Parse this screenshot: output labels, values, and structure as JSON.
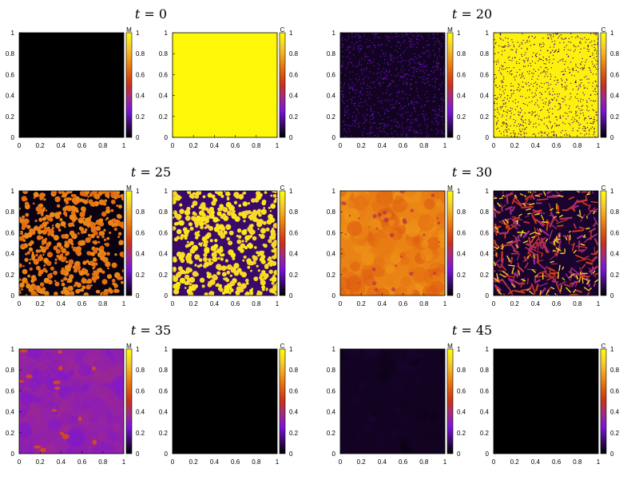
{
  "chart_data": {
    "type": "heatmap",
    "description_axes": {
      "xlim": [
        0,
        1
      ],
      "ylim": [
        0,
        1
      ],
      "colorbar_range": [
        0,
        1
      ]
    },
    "x_ticks": [
      "0",
      "0.2",
      "0.4",
      "0.6",
      "0.8",
      "1"
    ],
    "y_ticks": [
      "0",
      "0.2",
      "0.4",
      "0.6",
      "0.8",
      "1"
    ],
    "colorbar_ticks": [
      "0",
      "0.2",
      "0.4",
      "0.6",
      "0.8",
      "1"
    ],
    "colormap": [
      "#000000",
      "#3b0a6e",
      "#7a14d9",
      "#a02a8a",
      "#c8321c",
      "#e06010",
      "#f09a18",
      "#f8d030",
      "#ffff00"
    ],
    "time_symbol": "t",
    "time_equals": " = ",
    "panels": [
      {
        "time": "0",
        "fields": [
          {
            "label": "M",
            "mean": 0.0,
            "texture": "uniform"
          },
          {
            "label": "C",
            "mean": 0.98,
            "texture": "uniform"
          }
        ]
      },
      {
        "time": "20",
        "fields": [
          {
            "label": "M",
            "mean": 0.04,
            "texture": "sparse-dots",
            "dot_value": 0.22
          },
          {
            "label": "C",
            "mean": 0.96,
            "texture": "sparse-dots",
            "dot_value": 0.12
          }
        ]
      },
      {
        "time": "25",
        "fields": [
          {
            "label": "M",
            "mean": 0.55,
            "texture": "dense-blobs",
            "low": 0.02,
            "high": 0.72
          },
          {
            "label": "C",
            "mean": 0.8,
            "texture": "dense-blobs",
            "low": 0.12,
            "high": 0.95
          }
        ]
      },
      {
        "time": "30",
        "fields": [
          {
            "label": "M",
            "mean": 0.7,
            "texture": "smooth-cells",
            "low": 0.6,
            "high": 0.76
          },
          {
            "label": "C",
            "mean": 0.25,
            "texture": "network",
            "low": 0.05,
            "high": 0.95
          }
        ]
      },
      {
        "time": "35",
        "fields": [
          {
            "label": "M",
            "mean": 0.33,
            "texture": "smooth-cells-spots",
            "low": 0.25,
            "high": 0.38,
            "spot_value": 0.58
          },
          {
            "label": "C",
            "mean": 0.0,
            "texture": "uniform"
          }
        ]
      },
      {
        "time": "45",
        "fields": [
          {
            "label": "M",
            "mean": 0.04,
            "texture": "faint",
            "low": 0.02,
            "high": 0.06
          },
          {
            "label": "C",
            "mean": 0.0,
            "texture": "uniform"
          }
        ]
      }
    ]
  }
}
